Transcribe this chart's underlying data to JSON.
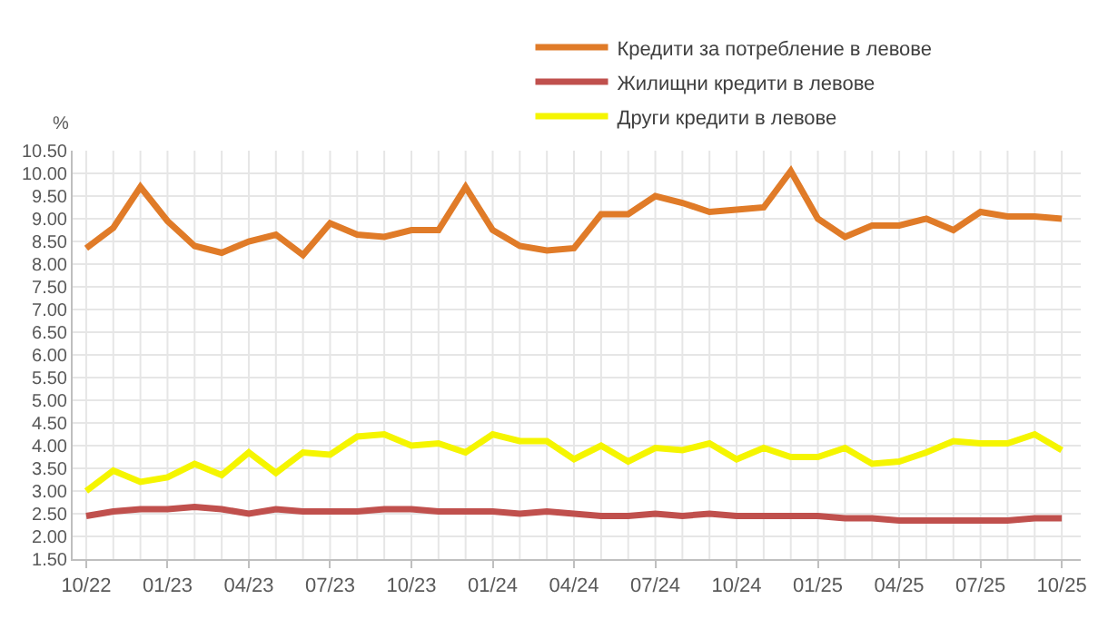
{
  "chart_data": {
    "type": "line",
    "ylabel": "%",
    "categories": [
      "10/22",
      null,
      null,
      "01/23",
      null,
      null,
      "04/23",
      null,
      null,
      "07/23",
      null,
      null,
      "10/23",
      null,
      null,
      "01/24",
      null,
      null,
      "04/24",
      null,
      null,
      "07/24",
      null,
      null,
      "10/24",
      null,
      null,
      "01/25",
      null,
      null,
      "04/25",
      null,
      null,
      "07/25",
      null,
      null,
      "10/25"
    ],
    "series": [
      {
        "name": "Кредити за потребление в левове",
        "color": "#e07b28",
        "values": [
          8.35,
          8.8,
          9.7,
          8.95,
          8.4,
          8.25,
          8.5,
          8.65,
          8.2,
          8.9,
          8.65,
          8.6,
          8.75,
          8.75,
          9.7,
          8.75,
          8.4,
          8.3,
          8.35,
          9.1,
          9.1,
          9.5,
          9.35,
          9.15,
          9.2,
          9.25,
          10.05,
          9.0,
          8.6,
          8.85,
          8.85,
          9.0,
          8.75,
          9.15,
          9.05,
          9.05,
          9.0
        ]
      },
      {
        "name": "Жилищни кредити в левове",
        "color": "#c0504d",
        "values": [
          2.45,
          2.55,
          2.6,
          2.6,
          2.65,
          2.6,
          2.5,
          2.6,
          2.55,
          2.55,
          2.55,
          2.6,
          2.6,
          2.55,
          2.55,
          2.55,
          2.5,
          2.55,
          2.5,
          2.45,
          2.45,
          2.5,
          2.45,
          2.5,
          2.45,
          2.45,
          2.45,
          2.45,
          2.4,
          2.4,
          2.35,
          2.35,
          2.35,
          2.35,
          2.35,
          2.4,
          2.4
        ]
      },
      {
        "name": "Други кредити в левове",
        "color": "#f5f500",
        "values": [
          3.0,
          3.45,
          3.2,
          3.3,
          3.6,
          3.35,
          3.85,
          3.4,
          3.85,
          3.8,
          4.2,
          4.25,
          4.0,
          4.05,
          3.85,
          4.25,
          4.1,
          4.1,
          3.7,
          4.0,
          3.65,
          3.95,
          3.9,
          4.05,
          3.7,
          3.95,
          3.75,
          3.75,
          3.95,
          3.6,
          3.65,
          3.85,
          4.1,
          4.05,
          4.05,
          4.25,
          3.9
        ]
      }
    ],
    "ylim": [
      1.5,
      10.5
    ],
    "yticks": [
      {
        "value": 1.5,
        "label": "1.50"
      },
      {
        "value": 2.0,
        "label": "2.00"
      },
      {
        "value": 2.5,
        "label": "2.50"
      },
      {
        "value": 3.0,
        "label": "3.00"
      },
      {
        "value": 3.5,
        "label": "3.50"
      },
      {
        "value": 4.0,
        "label": "4.00"
      },
      {
        "value": 4.5,
        "label": "4.50"
      },
      {
        "value": 5.0,
        "label": "5.00"
      },
      {
        "value": 5.5,
        "label": "5.50"
      },
      {
        "value": 6.0,
        "label": "6.00"
      },
      {
        "value": 6.5,
        "label": "6.50"
      },
      {
        "value": 7.0,
        "label": "7.00"
      },
      {
        "value": 7.5,
        "label": "7.50"
      },
      {
        "value": 8.0,
        "label": "8.00"
      },
      {
        "value": 8.5,
        "label": "8.50"
      },
      {
        "value": 9.0,
        "label": "9.00"
      },
      {
        "value": 9.5,
        "label": "9.50"
      },
      {
        "value": 10.0,
        "label": "10.00"
      },
      {
        "value": 10.5,
        "label": "10.50"
      }
    ],
    "grid": true,
    "legend": "top",
    "marker": "none",
    "line_style": "solid"
  }
}
